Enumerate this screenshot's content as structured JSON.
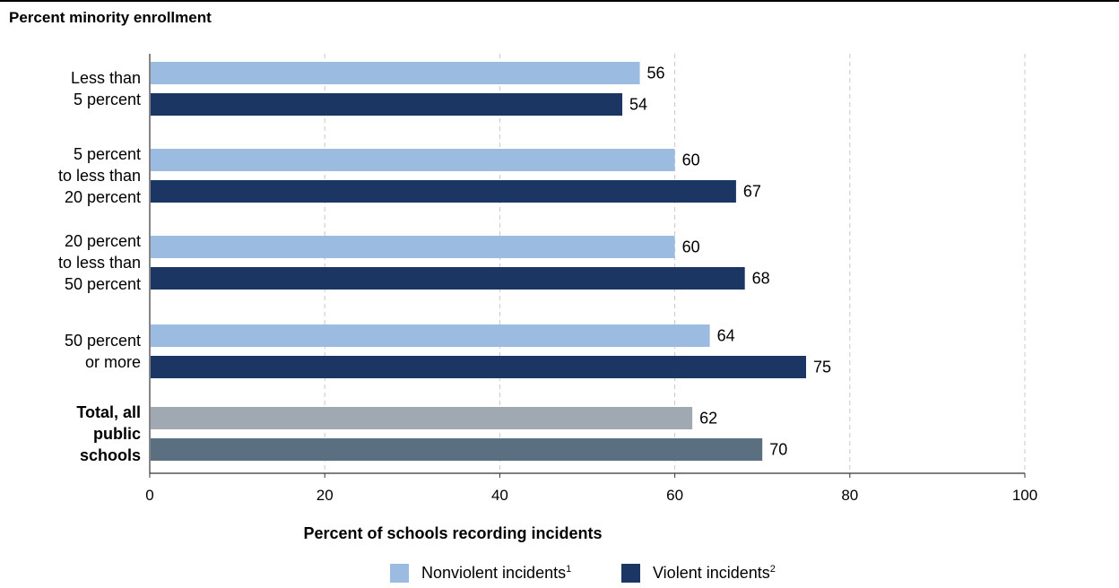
{
  "chart_data": {
    "type": "bar",
    "orientation": "horizontal",
    "title": "Percent minority enrollment",
    "xlabel": "Percent of schools recording incidents",
    "xlim": [
      0,
      100
    ],
    "xticks": [
      0,
      20,
      40,
      60,
      80,
      100
    ],
    "grid": "vertical dashed",
    "legend_position": "bottom",
    "categories": [
      {
        "label_lines": [
          "Less than",
          "5 percent"
        ],
        "bold": false
      },
      {
        "label_lines": [
          "5 percent",
          "to less than",
          "20 percent"
        ],
        "bold": false
      },
      {
        "label_lines": [
          "20 percent",
          "to less than",
          "50 percent"
        ],
        "bold": false
      },
      {
        "label_lines": [
          "50 percent",
          "or more"
        ],
        "bold": false
      },
      {
        "label_lines": [
          "Total, all",
          "public",
          "schools"
        ],
        "bold": true
      }
    ],
    "series": [
      {
        "name": "Nonviolent incidents",
        "footnote": "1",
        "color": "#9cbbe0",
        "total_color": "#a0a8b2",
        "values": [
          56,
          60,
          60,
          64,
          62
        ]
      },
      {
        "name": "Violent incidents",
        "footnote": "2",
        "color": "#1c3664",
        "total_color": "#5a7080",
        "values": [
          54,
          67,
          68,
          75,
          70
        ]
      }
    ]
  }
}
